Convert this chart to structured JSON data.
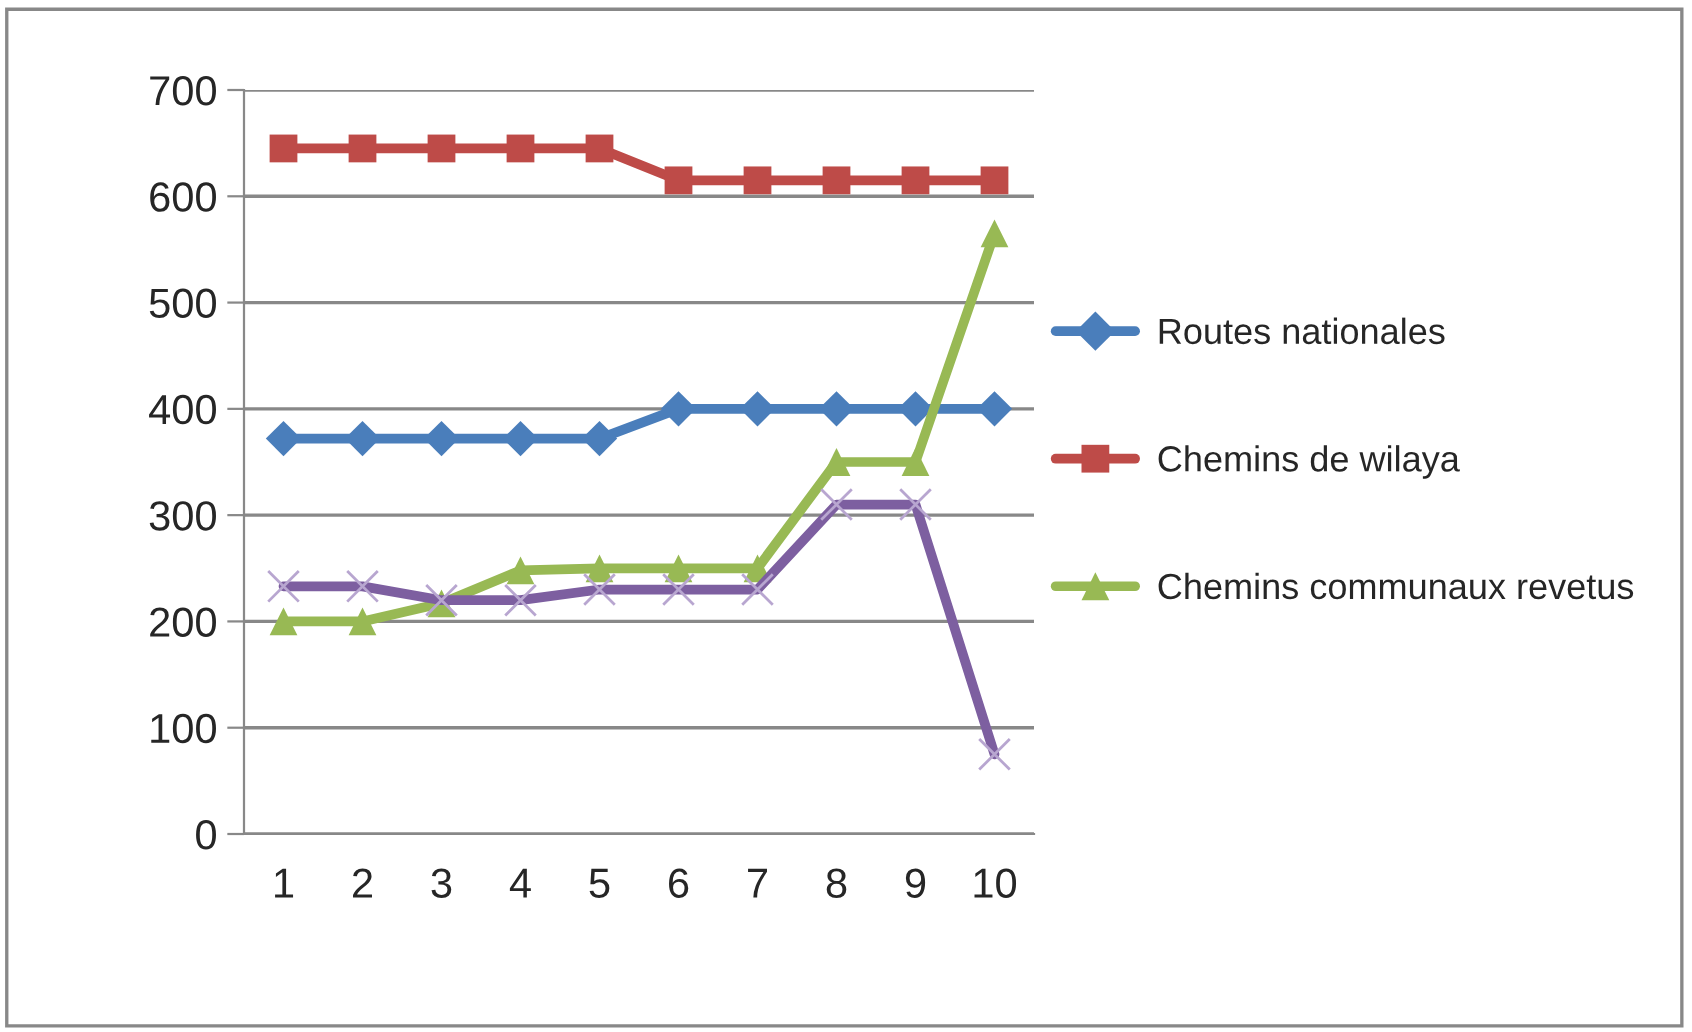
{
  "chart_data": {
    "type": "line",
    "categories": [
      "1",
      "2",
      "3",
      "4",
      "5",
      "6",
      "7",
      "8",
      "9",
      "10"
    ],
    "series": [
      {
        "name": "Routes nationales",
        "color": "#4a7ebb",
        "marker": "diamond",
        "values": [
          372,
          372,
          372,
          372,
          372,
          400,
          400,
          400,
          400,
          400
        ]
      },
      {
        "name": "Chemins de wilaya",
        "color": "#be4b48",
        "marker": "square",
        "values": [
          645,
          645,
          645,
          645,
          645,
          615,
          615,
          615,
          615,
          615
        ]
      },
      {
        "name": "Chemins communaux revetus",
        "color": "#98b954",
        "marker": "triangle",
        "values": [
          200,
          200,
          217,
          248,
          250,
          250,
          250,
          350,
          350,
          565
        ]
      },
      {
        "color": "#7d5fa0",
        "marker": "cross",
        "values": [
          233,
          233,
          220,
          220,
          230,
          230,
          230,
          310,
          310,
          75
        ]
      }
    ],
    "ylim": [
      0,
      700
    ],
    "yticks": [
      0,
      100,
      200,
      300,
      400,
      500,
      600,
      700
    ],
    "grid": "y",
    "legend": "right",
    "line_style": "solid"
  }
}
